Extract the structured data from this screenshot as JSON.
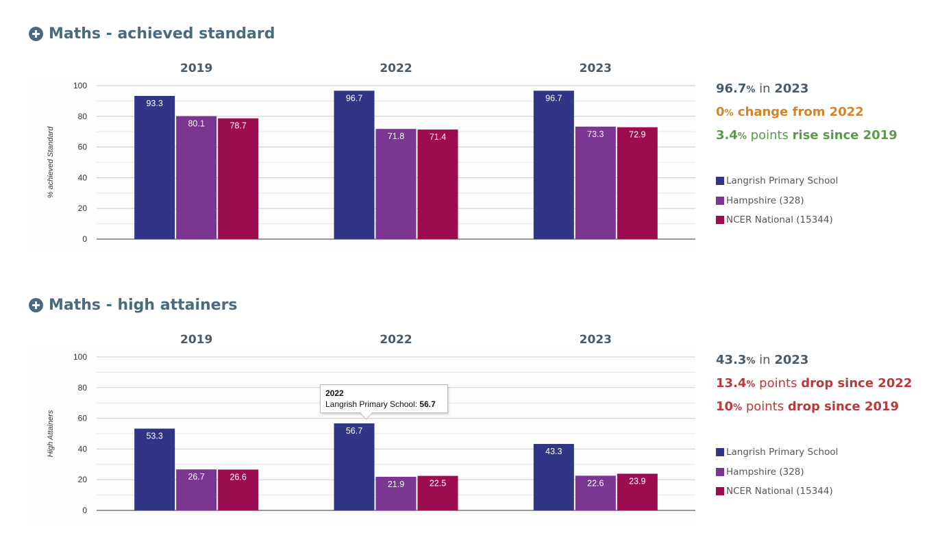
{
  "colors": {
    "school": "#303585",
    "hampshire": "#7a3690",
    "national": "#9b0d4f",
    "title": "#4a6b7c",
    "neutral": "#4a5a66",
    "change_flat": "#d4842a",
    "rise": "#5a9a4a",
    "drop": "#b83a3a"
  },
  "sections": [
    {
      "title": "Maths - achieved standard",
      "summary": {
        "line1": {
          "value": "96.7",
          "pct": "%",
          "mid": " in ",
          "tail": "2023"
        },
        "line2": {
          "value": "0",
          "pct": "%",
          "mid": " change ",
          "tail": "from 2022"
        },
        "line3": {
          "value": "3.4",
          "pct": "%",
          "mid": " points ",
          "tail": "rise since 2019"
        }
      },
      "legend": [
        "Langrish Primary School",
        "Hampshire (328)",
        "NCER National (15344)"
      ]
    },
    {
      "title": "Maths - high attainers",
      "summary": {
        "line1": {
          "value": "43.3",
          "pct": "%",
          "mid": " in ",
          "tail": "2023"
        },
        "line2": {
          "value": "13.4",
          "pct": "%",
          "mid": " points ",
          "tail": "drop since 2022"
        },
        "line3": {
          "value": "10",
          "pct": "%",
          "mid": " points ",
          "tail": "drop since 2019"
        }
      },
      "legend": [
        "Langrish Primary School",
        "Hampshire (328)",
        "NCER National (15344)"
      ],
      "tooltip": {
        "title": "2022",
        "label": "Langrish Primary School: ",
        "value": "56.7"
      }
    }
  ],
  "chart_data": [
    {
      "type": "bar",
      "title": "Maths - achieved standard",
      "ylabel": "% achieved Standard",
      "categories": [
        "2019",
        "2022",
        "2023"
      ],
      "yticks": [
        "0",
        "20",
        "40",
        "60",
        "80",
        "100"
      ],
      "ylim": [
        0,
        100
      ],
      "grid": true,
      "legend_position": "right",
      "series": [
        {
          "name": "Langrish Primary School",
          "values": [
            93.3,
            96.7,
            96.7
          ],
          "labels": [
            "93.3",
            "96.7",
            "96.7"
          ]
        },
        {
          "name": "Hampshire (328)",
          "values": [
            80.1,
            71.8,
            73.3
          ],
          "labels": [
            "80.1",
            "71.8",
            "73.3"
          ]
        },
        {
          "name": "NCER National (15344)",
          "values": [
            78.7,
            71.4,
            72.9
          ],
          "labels": [
            "78.7",
            "71.4",
            "72.9"
          ]
        }
      ]
    },
    {
      "type": "bar",
      "title": "Maths - high attainers",
      "ylabel": "High Attainers",
      "categories": [
        "2019",
        "2022",
        "2023"
      ],
      "yticks": [
        "0",
        "20",
        "40",
        "60",
        "80",
        "100"
      ],
      "ylim": [
        0,
        100
      ],
      "grid": true,
      "legend_position": "right",
      "series": [
        {
          "name": "Langrish Primary School",
          "values": [
            53.3,
            56.7,
            43.3
          ],
          "labels": [
            "53.3",
            "56.7",
            "43.3"
          ]
        },
        {
          "name": "Hampshire (328)",
          "values": [
            26.7,
            21.9,
            22.6
          ],
          "labels": [
            "26.7",
            "21.9",
            "22.6"
          ]
        },
        {
          "name": "NCER National (15344)",
          "values": [
            26.6,
            22.5,
            23.9
          ],
          "labels": [
            "26.6",
            "22.5",
            "23.9"
          ]
        }
      ]
    }
  ]
}
